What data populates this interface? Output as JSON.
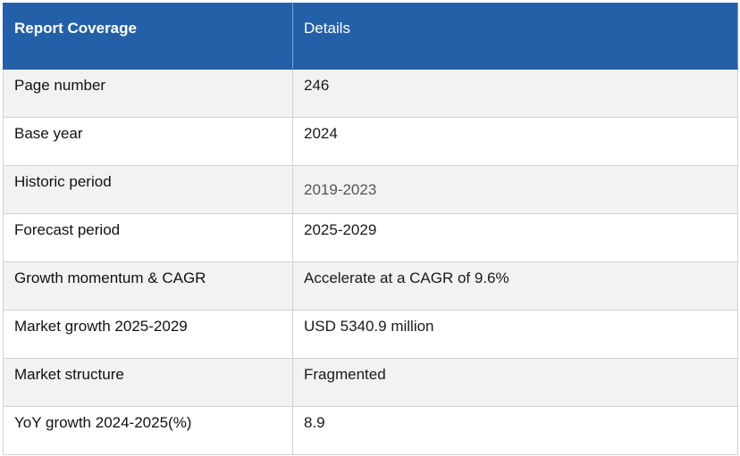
{
  "header": {
    "col1": "Report Coverage",
    "col2": "Details"
  },
  "rows": [
    {
      "label": "Page number",
      "value": "246"
    },
    {
      "label": "Base year",
      "value": "2024"
    },
    {
      "label": "Historic period",
      "value": "2019-2023"
    },
    {
      "label": "Forecast period",
      "value": "2025-2029"
    },
    {
      "label": "Growth momentum & CAGR",
      "value": "Accelerate at a CAGR of 9.6%"
    },
    {
      "label": "Market growth 2025-2029",
      "value": "USD 5340.9 million"
    },
    {
      "label": "Market structure",
      "value": "Fragmented"
    },
    {
      "label": "YoY growth 2024-2025(%)",
      "value": "8.9"
    }
  ],
  "colors": {
    "header_bg": "#2460a7",
    "header_text": "#ffffff",
    "row_alt_bg": "#f2f2f2",
    "border": "#d2d2d2"
  }
}
